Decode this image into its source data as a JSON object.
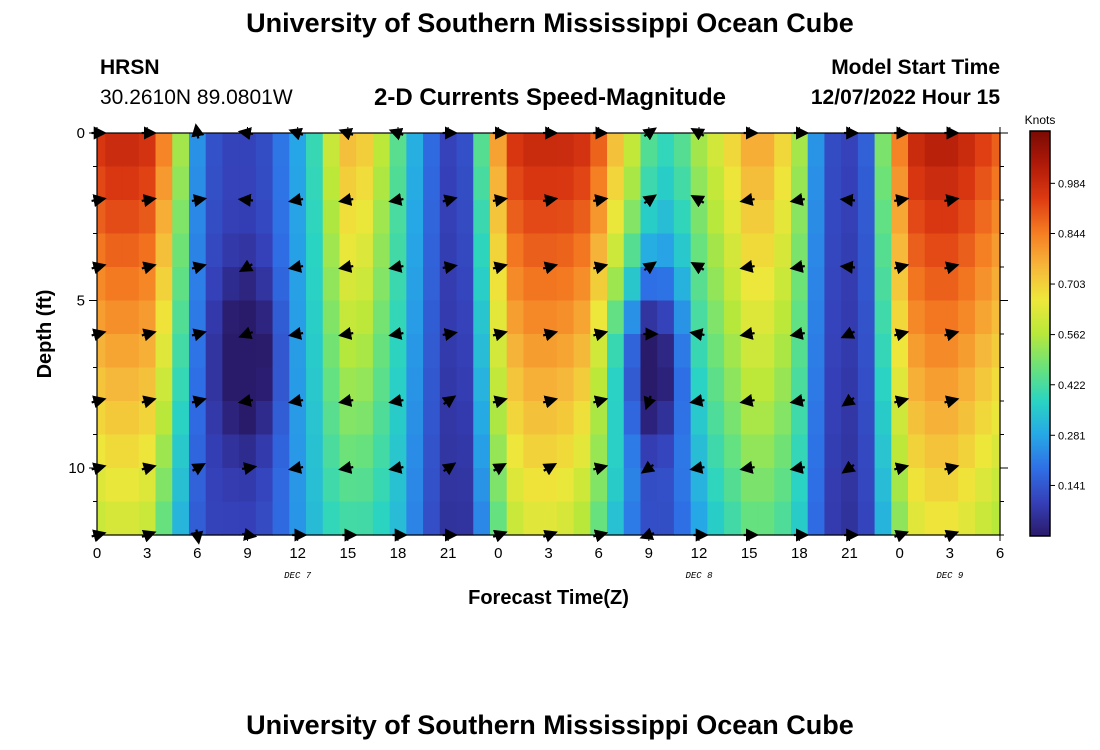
{
  "header": {
    "title": "University of Southern Mississippi Ocean Cube",
    "station": "HRSN",
    "coords": "30.2610N  89.0801W",
    "subtitle": "2-D Currents Speed-Magnitude",
    "model_label": "Model Start Time",
    "model_time": "12/07/2022 Hour 15"
  },
  "footer": {
    "title": "University of Southern Mississippi Ocean Cube"
  },
  "chart_data": {
    "type": "heatmap",
    "title": "2-D Currents Speed-Magnitude",
    "xlabel": "Forecast Time(Z)",
    "ylabel": "Depth (ft)",
    "x_tick_labels": [
      "0",
      "3",
      "6",
      "9",
      "12",
      "15",
      "18",
      "21",
      "0",
      "3",
      "6",
      "9",
      "12",
      "15",
      "18",
      "21",
      "0",
      "3",
      "6"
    ],
    "x_forecast_hours": [
      0,
      3,
      6,
      9,
      12,
      15,
      18,
      21,
      24,
      27,
      30,
      33,
      36,
      39,
      42,
      45,
      48,
      51,
      54
    ],
    "xlim": [
      0,
      54
    ],
    "y_ticks": [
      0,
      5,
      10
    ],
    "ylim": [
      0,
      12
    ],
    "y_inverted": true,
    "date_labels": [
      {
        "label": "DEC 7",
        "hour": 12
      },
      {
        "label": "DEC 8",
        "hour": 36
      },
      {
        "label": "DEC 9",
        "hour": 51
      }
    ],
    "colorbar": {
      "label": "Knots",
      "ticks": [
        0.141,
        0.281,
        0.422,
        0.562,
        0.703,
        0.844,
        0.984
      ],
      "range": [
        0.0,
        1.13
      ],
      "colors": [
        "#2a1a6a",
        "#3540b8",
        "#2f6fe6",
        "#26a8e6",
        "#2ad4c2",
        "#6ae27a",
        "#b8e83a",
        "#eee73a",
        "#f6b63a",
        "#f57c22",
        "#dd3a12",
        "#b01a08",
        "#7a0a04"
      ]
    },
    "depths": [
      0,
      2,
      4,
      6,
      8,
      10,
      12
    ],
    "speed_profile": {
      "hours": [
        0,
        1,
        2,
        3,
        4,
        5,
        6,
        7,
        8,
        9,
        10,
        11,
        12,
        13,
        14,
        15,
        16,
        17,
        18,
        19,
        20,
        21,
        22,
        23,
        24,
        25,
        26,
        27,
        28,
        29,
        30,
        31,
        32,
        33,
        34,
        35,
        36,
        37,
        38,
        39,
        40,
        41,
        42,
        43,
        44,
        45,
        46,
        47,
        48,
        49,
        50,
        51,
        52,
        53,
        54
      ],
      "surface": [
        0.97,
        1.0,
        1.0,
        0.98,
        0.85,
        0.55,
        0.25,
        0.13,
        0.1,
        0.1,
        0.12,
        0.2,
        0.28,
        0.4,
        0.6,
        0.75,
        0.72,
        0.58,
        0.45,
        0.3,
        0.18,
        0.1,
        0.13,
        0.45,
        0.8,
        0.97,
        1.0,
        1.0,
        1.0,
        0.98,
        0.9,
        0.75,
        0.6,
        0.45,
        0.4,
        0.45,
        0.55,
        0.62,
        0.7,
        0.78,
        0.78,
        0.7,
        0.55,
        0.25,
        0.12,
        0.1,
        0.16,
        0.5,
        0.85,
        1.0,
        1.03,
        1.03,
        1.0,
        0.95,
        0.9
      ],
      "bottom": [
        0.58,
        0.6,
        0.6,
        0.58,
        0.45,
        0.3,
        0.15,
        0.1,
        0.1,
        0.1,
        0.12,
        0.18,
        0.25,
        0.32,
        0.38,
        0.4,
        0.4,
        0.37,
        0.32,
        0.22,
        0.12,
        0.06,
        0.06,
        0.22,
        0.45,
        0.58,
        0.62,
        0.62,
        0.6,
        0.55,
        0.45,
        0.32,
        0.2,
        0.12,
        0.12,
        0.18,
        0.27,
        0.35,
        0.4,
        0.45,
        0.45,
        0.42,
        0.35,
        0.18,
        0.08,
        0.06,
        0.1,
        0.3,
        0.5,
        0.62,
        0.65,
        0.65,
        0.62,
        0.58,
        0.55
      ],
      "mid_dip": [
        0,
        0,
        0,
        0,
        0,
        0,
        0,
        0.05,
        0.12,
        0.16,
        0.12,
        0.05,
        0,
        0,
        0,
        0,
        0,
        0,
        0,
        0,
        0,
        0,
        0,
        0,
        0,
        0,
        0,
        0,
        0,
        0,
        0.05,
        0.12,
        0.22,
        0.3,
        0.22,
        0.1,
        0,
        0,
        0,
        0,
        0,
        0,
        0,
        0,
        0,
        0,
        0,
        0,
        0,
        0,
        0,
        0,
        0,
        0,
        0
      ]
    },
    "vector_hours": [
      0,
      3,
      6,
      9,
      12,
      15,
      18,
      21,
      24,
      27,
      30,
      33,
      36,
      39,
      42,
      45,
      48,
      51
    ],
    "vector_directions_deg": [
      [
        0,
        0,
        100,
        170,
        160,
        160,
        160,
        0,
        0,
        0,
        0,
        35,
        150,
        0,
        0,
        0,
        0,
        0
      ],
      [
        10,
        10,
        10,
        175,
        190,
        190,
        190,
        15,
        10,
        10,
        10,
        35,
        150,
        190,
        190,
        175,
        10,
        10
      ],
      [
        15,
        15,
        15,
        210,
        190,
        190,
        190,
        10,
        15,
        15,
        15,
        35,
        150,
        190,
        190,
        175,
        15,
        15
      ],
      [
        15,
        15,
        15,
        200,
        190,
        190,
        190,
        10,
        15,
        15,
        15,
        0,
        170,
        190,
        190,
        205,
        15,
        15
      ],
      [
        15,
        15,
        15,
        190,
        190,
        190,
        190,
        35,
        15,
        15,
        15,
        250,
        190,
        190,
        190,
        215,
        15,
        15
      ],
      [
        15,
        15,
        30,
        10,
        190,
        190,
        190,
        35,
        30,
        30,
        15,
        215,
        190,
        190,
        190,
        215,
        15,
        15
      ],
      [
        15,
        20,
        280,
        350,
        0,
        0,
        0,
        0,
        20,
        20,
        15,
        200,
        0,
        0,
        0,
        0,
        20,
        20
      ]
    ]
  }
}
